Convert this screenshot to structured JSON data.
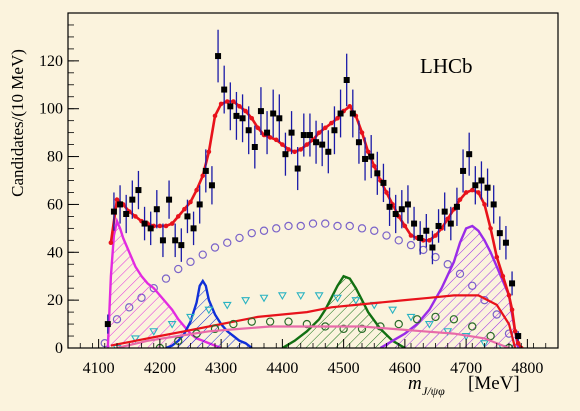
{
  "colors": {
    "background": "#fbf3dd",
    "data_points": "#000000",
    "error_bars": "#1a1aa8",
    "total_fit": "#e8121b",
    "magenta_component": "#e22be0",
    "blue_component": "#1030d8",
    "violet_component": "#9a2be8",
    "green_component": "#127012",
    "lavender_component": "#7a63c9",
    "cyan_component": "#2ab3c2",
    "dark_green_component": "#2a6b28",
    "pink_component": "#e86aa8"
  },
  "chart_data": {
    "type": "line",
    "experiment_label": "LHCb",
    "ylabel": "Candidates/(10 MeV)",
    "xlabel": {
      "symbol": "m",
      "subscript": "J/ψφ",
      "unit": "[MeV]"
    },
    "xlim": [
      4050,
      4850
    ],
    "ylim": [
      0,
      140
    ],
    "x_ticks": [
      4100,
      4200,
      4300,
      4400,
      4500,
      4600,
      4700,
      4800
    ],
    "y_ticks": [
      0,
      20,
      40,
      60,
      80,
      100,
      120
    ],
    "data_points": {
      "x": [
        4115,
        4125,
        4135,
        4145,
        4155,
        4165,
        4175,
        4185,
        4195,
        4205,
        4215,
        4225,
        4235,
        4245,
        4255,
        4265,
        4275,
        4285,
        4295,
        4305,
        4315,
        4325,
        4335,
        4345,
        4355,
        4365,
        4375,
        4385,
        4395,
        4405,
        4415,
        4425,
        4435,
        4445,
        4455,
        4465,
        4475,
        4485,
        4495,
        4505,
        4515,
        4525,
        4535,
        4545,
        4555,
        4565,
        4575,
        4585,
        4595,
        4605,
        4615,
        4625,
        4635,
        4645,
        4655,
        4665,
        4675,
        4685,
        4695,
        4705,
        4715,
        4725,
        4735,
        4745,
        4755,
        4765,
        4775,
        4785
      ],
      "y": [
        10,
        57,
        60,
        56,
        62,
        66,
        52,
        50,
        58,
        45,
        62,
        45,
        43,
        55,
        50,
        60,
        74,
        68,
        122,
        108,
        101,
        97,
        96,
        91,
        84,
        99,
        90,
        98,
        96,
        81,
        90,
        75,
        89,
        89,
        86,
        85,
        82,
        91,
        98,
        112,
        98,
        86,
        79,
        80,
        73,
        69,
        59,
        56,
        58,
        60,
        52,
        46,
        49,
        42,
        51,
        57,
        52,
        59,
        74,
        81,
        68,
        70,
        67,
        60,
        48,
        44,
        27,
        5
      ],
      "err": [
        4,
        8,
        8,
        8,
        8,
        8,
        7,
        7,
        8,
        7,
        8,
        7,
        7,
        7,
        7,
        8,
        9,
        8,
        11,
        10,
        10,
        10,
        10,
        10,
        9,
        10,
        9,
        10,
        10,
        9,
        9,
        9,
        9,
        9,
        9,
        9,
        9,
        10,
        10,
        11,
        10,
        9,
        9,
        9,
        9,
        8,
        8,
        8,
        8,
        8,
        7,
        7,
        7,
        7,
        7,
        8,
        7,
        8,
        9,
        9,
        8,
        8,
        8,
        8,
        7,
        7,
        5,
        2
      ]
    },
    "total_fit": {
      "x": [
        4120,
        4130,
        4140,
        4150,
        4160,
        4170,
        4180,
        4190,
        4200,
        4210,
        4220,
        4230,
        4240,
        4250,
        4260,
        4270,
        4280,
        4290,
        4300,
        4310,
        4320,
        4330,
        4340,
        4350,
        4360,
        4370,
        4380,
        4390,
        4400,
        4410,
        4420,
        4430,
        4440,
        4450,
        4460,
        4470,
        4480,
        4490,
        4500,
        4510,
        4520,
        4530,
        4540,
        4550,
        4560,
        4570,
        4580,
        4590,
        4600,
        4610,
        4620,
        4630,
        4640,
        4650,
        4660,
        4670,
        4680,
        4690,
        4700,
        4710,
        4720,
        4730,
        4740,
        4750,
        4760,
        4770,
        4775,
        4780,
        4785,
        4790
      ],
      "y": [
        44,
        62,
        60,
        57,
        55,
        53,
        52,
        51,
        51,
        51,
        52,
        55,
        58,
        61,
        66,
        72,
        82,
        97,
        102,
        103,
        103,
        101,
        99,
        96,
        92,
        89,
        88,
        87,
        85,
        83,
        82,
        83,
        85,
        87,
        90,
        92,
        94,
        96,
        99,
        101,
        97,
        90,
        82,
        76,
        70,
        65,
        60,
        55,
        51,
        47,
        46,
        45,
        45,
        47,
        50,
        54,
        58,
        62,
        65,
        66,
        65,
        60,
        50,
        38,
        30,
        22,
        16,
        7,
        2,
        0
      ]
    },
    "series": [
      {
        "style": "open-circles",
        "color": "#7a63c9",
        "x": [
          4110,
          4130,
          4150,
          4170,
          4190,
          4210,
          4230,
          4250,
          4270,
          4290,
          4310,
          4330,
          4350,
          4370,
          4390,
          4410,
          4430,
          4450,
          4470,
          4490,
          4510,
          4530,
          4550,
          4570,
          4590,
          4610,
          4630,
          4650,
          4670,
          4690,
          4710,
          4730,
          4750,
          4770,
          4780
        ],
        "y": [
          2,
          12,
          17,
          21,
          25,
          29,
          33,
          36,
          39,
          42,
          44,
          46,
          48,
          49,
          50,
          51,
          51,
          52,
          52,
          51,
          51,
          50,
          49,
          47,
          45,
          43,
          41,
          38,
          35,
          31,
          26,
          20,
          14,
          6,
          0
        ]
      },
      {
        "style": "hatched",
        "color": "#e22be0",
        "x": [
          4115,
          4120,
          4125,
          4130,
          4135,
          4140,
          4150,
          4160,
          4170,
          4180,
          4190,
          4200,
          4210,
          4220,
          4230,
          4240,
          4250,
          4260,
          4270,
          4280,
          4290,
          4300
        ],
        "y": [
          0,
          30,
          47,
          53,
          50,
          46,
          40,
          34,
          30,
          27,
          25,
          22,
          19,
          16,
          12,
          9,
          6,
          4,
          3,
          2,
          1,
          0
        ]
      },
      {
        "style": "hatched",
        "color": "#1030d8",
        "x": [
          4210,
          4220,
          4230,
          4240,
          4250,
          4260,
          4265,
          4270,
          4275,
          4280,
          4290,
          4300,
          4310,
          4320,
          4330,
          4340,
          4350
        ],
        "y": [
          0,
          1,
          3,
          6,
          11,
          19,
          26,
          28,
          26,
          20,
          14,
          10,
          7,
          5,
          3,
          2,
          0
        ]
      },
      {
        "style": "hatched",
        "color": "#127012",
        "x": [
          4400,
          4420,
          4440,
          4460,
          4470,
          4480,
          4490,
          4500,
          4510,
          4520,
          4530,
          4540,
          4560,
          4580,
          4600
        ],
        "y": [
          0,
          3,
          7,
          12,
          16,
          21,
          26,
          30,
          29,
          25,
          20,
          15,
          8,
          3,
          0
        ]
      },
      {
        "style": "hatched",
        "color": "#9a2be8",
        "x": [
          4560,
          4580,
          4600,
          4620,
          4640,
          4660,
          4680,
          4690,
          4700,
          4710,
          4720,
          4730,
          4740,
          4750,
          4760,
          4770,
          4775,
          4780,
          4785
        ],
        "y": [
          0,
          3,
          6,
          10,
          16,
          25,
          36,
          44,
          50,
          51,
          49,
          45,
          40,
          34,
          28,
          22,
          14,
          7,
          0
        ]
      },
      {
        "style": "open-triangles",
        "color": "#2ab3c2",
        "x": [
          4130,
          4160,
          4190,
          4220,
          4250,
          4280,
          4310,
          4340,
          4370,
          4400,
          4430,
          4460,
          4490,
          4520,
          4550,
          4580,
          4610,
          4640,
          4670,
          4700,
          4730,
          4760
        ],
        "y": [
          0,
          4,
          7,
          10,
          13,
          16,
          18,
          20,
          21,
          22,
          22,
          22,
          21,
          20,
          18,
          16,
          13,
          10,
          7,
          5,
          2,
          0
        ]
      },
      {
        "style": "line",
        "color": "#e8121b",
        "x": [
          4120,
          4160,
          4200,
          4240,
          4280,
          4320,
          4360,
          4400,
          4440,
          4480,
          4520,
          4560,
          4600,
          4640,
          4680,
          4720,
          4750,
          4770,
          4780
        ],
        "y": [
          1,
          3,
          5,
          7,
          9,
          11,
          13,
          14,
          15,
          17,
          18,
          19,
          20,
          21,
          22,
          22,
          18,
          10,
          0
        ]
      },
      {
        "style": "open-circles",
        "color": "#2a6b28",
        "x": [
          4200,
          4230,
          4260,
          4290,
          4320,
          4350,
          4380,
          4410,
          4440,
          4470,
          4500,
          4530,
          4560,
          4590,
          4620,
          4650,
          4680,
          4710,
          4740,
          4770
        ],
        "y": [
          0,
          3,
          6,
          8,
          10,
          11,
          11,
          11,
          10,
          9,
          8,
          8,
          9,
          10,
          12,
          13,
          12,
          9,
          5,
          0
        ]
      },
      {
        "style": "line",
        "color": "#e86aa8",
        "x": [
          4130,
          4180,
          4230,
          4280,
          4330,
          4380,
          4430,
          4480,
          4530,
          4580,
          4630,
          4680,
          4730,
          4770
        ],
        "y": [
          0,
          3,
          5,
          7,
          8,
          9,
          9,
          9,
          9,
          8,
          7,
          6,
          4,
          0
        ]
      }
    ]
  }
}
